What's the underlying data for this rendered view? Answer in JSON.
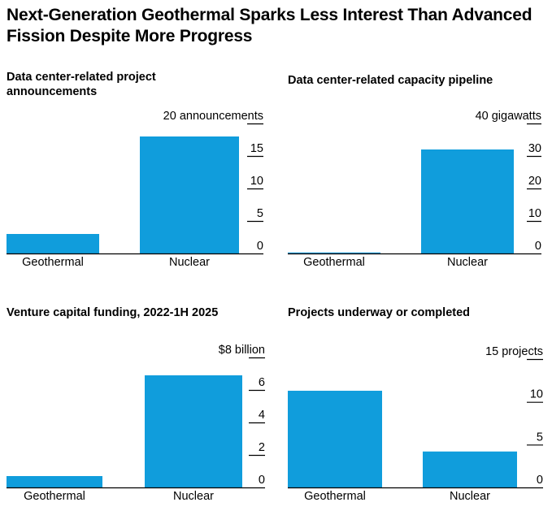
{
  "title": "Next-Generation Geothermal Sparks Less Interest Than Advanced Fission Despite More Progress",
  "colors": {
    "bar": "#109DDC",
    "axis": "#000000"
  },
  "chart_data": [
    {
      "type": "bar",
      "title": "Data center-related project announcements",
      "categories": [
        "Geothermal",
        "Nuclear"
      ],
      "values": [
        3,
        18
      ],
      "ylim": [
        0,
        20
      ],
      "yticks": [
        0,
        5,
        10,
        15,
        20
      ],
      "tick_labels": [
        "0",
        "5",
        "10",
        "15",
        "20 announcements"
      ],
      "xlabel": "",
      "ylabel": ""
    },
    {
      "type": "bar",
      "title": "Data center-related capacity pipeline",
      "categories": [
        "Geothermal",
        "Nuclear"
      ],
      "values": [
        0.3,
        32
      ],
      "ylim": [
        0,
        40
      ],
      "yticks": [
        0,
        10,
        20,
        30,
        40
      ],
      "tick_labels": [
        "0",
        "10",
        "20",
        "30",
        "40 gigawatts"
      ],
      "xlabel": "",
      "ylabel": ""
    },
    {
      "type": "bar",
      "title": "Venture capital funding, 2022-1H 2025",
      "categories": [
        "Geothermal",
        "Nuclear"
      ],
      "values": [
        0.7,
        6.9
      ],
      "ylim": [
        0,
        8
      ],
      "yticks": [
        0,
        2,
        4,
        6,
        8
      ],
      "tick_labels": [
        "0",
        "2",
        "4",
        "6",
        "$8 billion"
      ],
      "xlabel": "",
      "ylabel": ""
    },
    {
      "type": "bar",
      "title": "Projects underway or completed",
      "categories": [
        "Geothermal",
        "Nuclear"
      ],
      "values": [
        11.3,
        4.2
      ],
      "ylim": [
        0,
        15
      ],
      "yticks": [
        0,
        5,
        10,
        15
      ],
      "tick_labels": [
        "0",
        "5",
        "10",
        "15 projects"
      ],
      "xlabel": "",
      "ylabel": ""
    }
  ]
}
